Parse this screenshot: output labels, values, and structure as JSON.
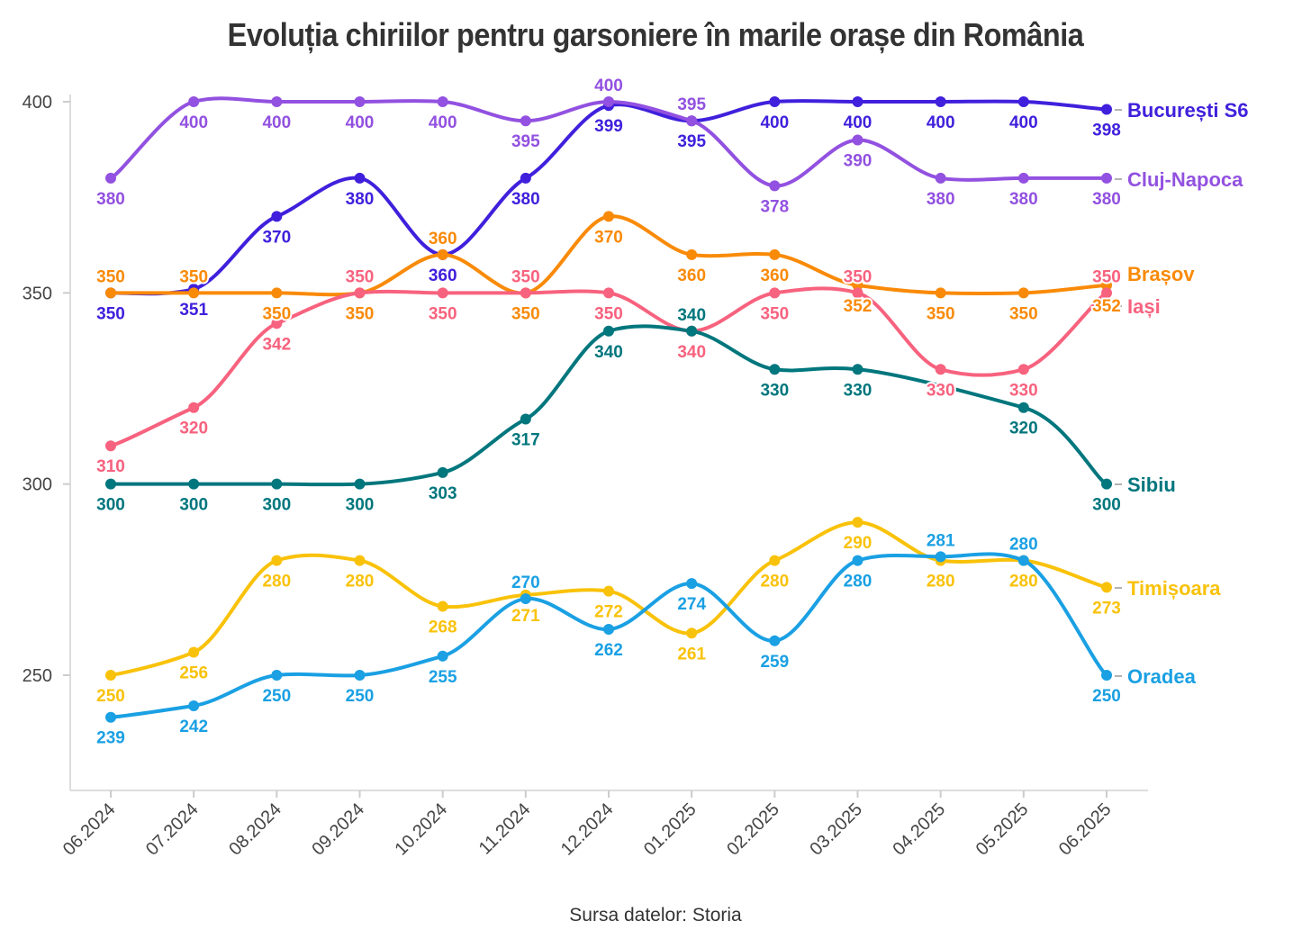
{
  "chart_data": {
    "type": "line",
    "title": "Evoluția chiriilor pentru garsoniere în marile orașe din România",
    "source": "Sursa datelor: Storia",
    "xlabel": "",
    "ylabel": "",
    "ylim": [
      220,
      402
    ],
    "yticks": [
      250,
      300,
      350,
      400
    ],
    "grid": false,
    "categories": [
      "06.2024",
      "07.2024",
      "08.2024",
      "09.2024",
      "10.2024",
      "11.2024",
      "12.2024",
      "01.2025",
      "02.2025",
      "03.2025",
      "04.2025",
      "05.2025",
      "06.2025"
    ],
    "series": [
      {
        "name": "București S6",
        "color": "#4020dc",
        "values": [
          350,
          351,
          370,
          380,
          360,
          380,
          399,
          395,
          400,
          400,
          400,
          400,
          398
        ]
      },
      {
        "name": "Cluj-Napoca",
        "color": "#9251e0",
        "values": [
          380,
          400,
          400,
          400,
          400,
          395,
          400,
          395,
          378,
          390,
          380,
          380,
          380
        ]
      },
      {
        "name": "Brașov",
        "color": "#f98a08",
        "values": [
          350,
          350,
          350,
          350,
          360,
          350,
          370,
          360,
          360,
          352,
          350,
          350,
          352
        ]
      },
      {
        "name": "Iași",
        "color": "#f7627e",
        "values": [
          310,
          320,
          342,
          350,
          350,
          350,
          350,
          340,
          350,
          350,
          330,
          330,
          350
        ]
      },
      {
        "name": "Sibiu",
        "color": "#00767d",
        "values": [
          300,
          300,
          300,
          300,
          303,
          317,
          340,
          340,
          330,
          330,
          null,
          320,
          300
        ]
      },
      {
        "name": "Timișoara",
        "color": "#f9c20a",
        "values": [
          250,
          256,
          280,
          280,
          268,
          271,
          272,
          261,
          280,
          290,
          280,
          280,
          273
        ]
      },
      {
        "name": "Oradea",
        "color": "#1aa0e3",
        "values": [
          239,
          242,
          250,
          250,
          255,
          270,
          262,
          274,
          259,
          280,
          281,
          280,
          250
        ]
      }
    ]
  }
}
